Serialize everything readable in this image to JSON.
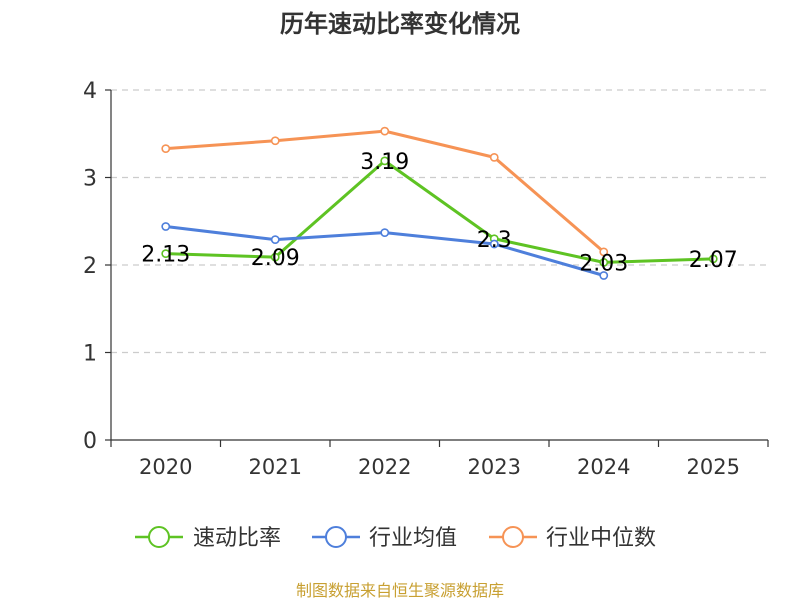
{
  "chart_data": {
    "type": "line",
    "title": "历年速动比率变化情况",
    "categories": [
      "2020",
      "2021",
      "2022",
      "2023",
      "2024",
      "2025"
    ],
    "ylim": [
      0,
      4
    ],
    "yticks": [
      0,
      1,
      2,
      3,
      4
    ],
    "grid": true,
    "legend_position": "bottom",
    "series": [
      {
        "name": "速动比率",
        "color": "#5ec323",
        "values": [
          2.13,
          2.09,
          3.19,
          2.3,
          2.03,
          2.07
        ],
        "show_labels": true
      },
      {
        "name": "行业均值",
        "color": "#4e7fdb",
        "values": [
          2.44,
          2.29,
          2.37,
          2.24,
          1.88,
          null
        ],
        "show_labels": false
      },
      {
        "name": "行业中位数",
        "color": "#f69355",
        "values": [
          3.33,
          3.42,
          3.53,
          3.23,
          2.15,
          null
        ],
        "show_labels": false
      }
    ],
    "source": "制图数据来自恒生聚源数据库"
  }
}
